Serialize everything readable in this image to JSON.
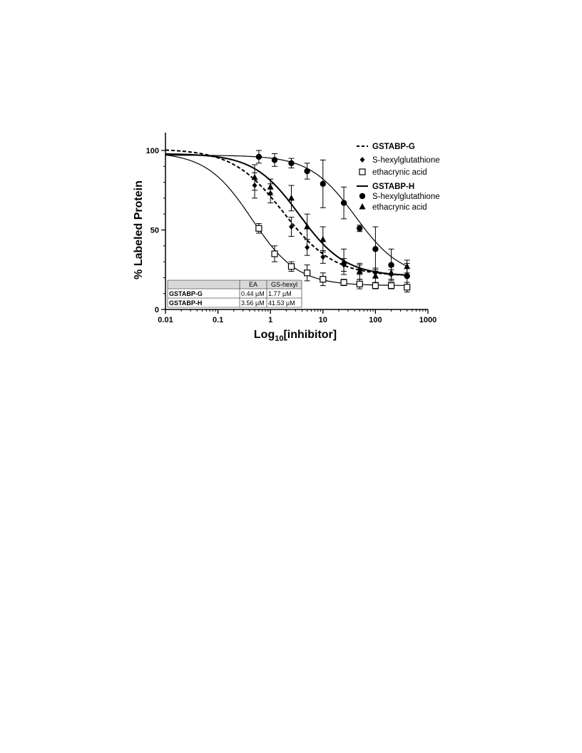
{
  "chart_data": {
    "type": "scatter",
    "xlabel_main": "Log",
    "xlabel_sub": "10",
    "xlabel_tail": "[inhibitor]",
    "ylabel": "% Labeled Protein",
    "xscale": "log",
    "xlim": [
      0.01,
      1000
    ],
    "ylim": [
      0,
      100
    ],
    "xticks": [
      0.01,
      0.1,
      1,
      10,
      100,
      1000
    ],
    "xtick_labels": [
      "0.01",
      "0.1",
      "1",
      "10",
      "100",
      "1000"
    ],
    "yticks": [
      0,
      50,
      100
    ],
    "ytick_labels": [
      "0",
      "50",
      "100"
    ],
    "grid": false,
    "legend_position": "top-right",
    "legend": [
      {
        "type": "line",
        "label": "GSTABP-G",
        "dash": true,
        "bold": true
      },
      {
        "type": "marker",
        "marker": "diamond",
        "label": "S-hexylglutathione"
      },
      {
        "type": "marker",
        "marker": "square-open",
        "label": "ethacrynic acid"
      },
      {
        "type": "line",
        "label": "GSTABP-H",
        "dash": false,
        "bold": true
      },
      {
        "type": "marker",
        "marker": "circle",
        "label": "S-hexylglutathione"
      },
      {
        "type": "marker",
        "marker": "triangle",
        "label": "ethacrynic acid"
      }
    ],
    "series": [
      {
        "probe": "GSTABP-G",
        "inhibitor": "S-hexylglutathione",
        "marker": "diamond",
        "x": [
          0.5,
          1,
          2.5,
          5,
          10,
          25,
          50,
          100,
          200
        ],
        "y": [
          78,
          73,
          52,
          39,
          33,
          28,
          25,
          23,
          22
        ],
        "err": [
          8,
          6,
          6,
          5,
          4,
          4,
          3,
          3,
          3
        ]
      },
      {
        "probe": "GSTABP-G",
        "inhibitor": "ethacrynic acid",
        "marker": "square-open",
        "x": [
          0.6,
          1.2,
          2.5,
          5,
          10,
          25,
          50,
          100,
          200,
          400
        ],
        "y": [
          51,
          35,
          27,
          23,
          19,
          17,
          16,
          15,
          15,
          14
        ],
        "err": [
          3,
          5,
          3,
          5,
          4,
          2,
          3,
          2,
          2,
          3
        ]
      },
      {
        "probe": "GSTABP-H",
        "inhibitor": "S-hexylglutathione",
        "marker": "circle",
        "x": [
          0.6,
          1.2,
          2.5,
          5,
          10,
          25,
          50,
          100,
          200,
          400
        ],
        "y": [
          96,
          94,
          92,
          87,
          79,
          67,
          51,
          38,
          28,
          21
        ],
        "err": [
          4,
          4,
          3,
          5,
          15,
          10,
          2,
          14,
          10,
          8
        ]
      },
      {
        "probe": "GSTABP-H",
        "inhibitor": "ethacrynic acid",
        "marker": "triangle",
        "x": [
          0.5,
          1,
          2.5,
          5,
          10,
          25,
          50,
          100,
          200,
          400
        ],
        "y": [
          83,
          77,
          70,
          52,
          44,
          30,
          24,
          21,
          23,
          27
        ],
        "err": [
          8,
          5,
          8,
          8,
          8,
          8,
          5,
          4,
          4,
          4
        ]
      }
    ],
    "fit_curves": [
      {
        "name": "GSTABP-G, S-hexylglutathione",
        "dash": true,
        "top": 101,
        "bottom": 21,
        "ic50": 1.77,
        "hill": 0.9
      },
      {
        "name": "GSTABP-G, ethacrynic acid",
        "dash": false,
        "top": 99,
        "bottom": 15,
        "ic50": 0.44,
        "hill": 1.0,
        "thin": true
      },
      {
        "name": "GSTABP-H, S-hexylglutathione",
        "dash": false,
        "top": 97,
        "bottom": 20,
        "ic50": 41.53,
        "hill": 1.0,
        "thin": true
      },
      {
        "name": "GSTABP-H, ethacrynic acid",
        "dash": false,
        "top": 98,
        "bottom": 21,
        "ic50": 3.56,
        "hill": 1.0
      }
    ],
    "inset_table": {
      "headers": [
        "",
        "EA",
        "GS-hexyl"
      ],
      "rows": [
        [
          "GSTABP-G",
          "0.44 µM",
          "1.77 µM"
        ],
        [
          "GSTABP-H",
          "3.56 µM",
          "41.53 µM"
        ]
      ]
    }
  }
}
